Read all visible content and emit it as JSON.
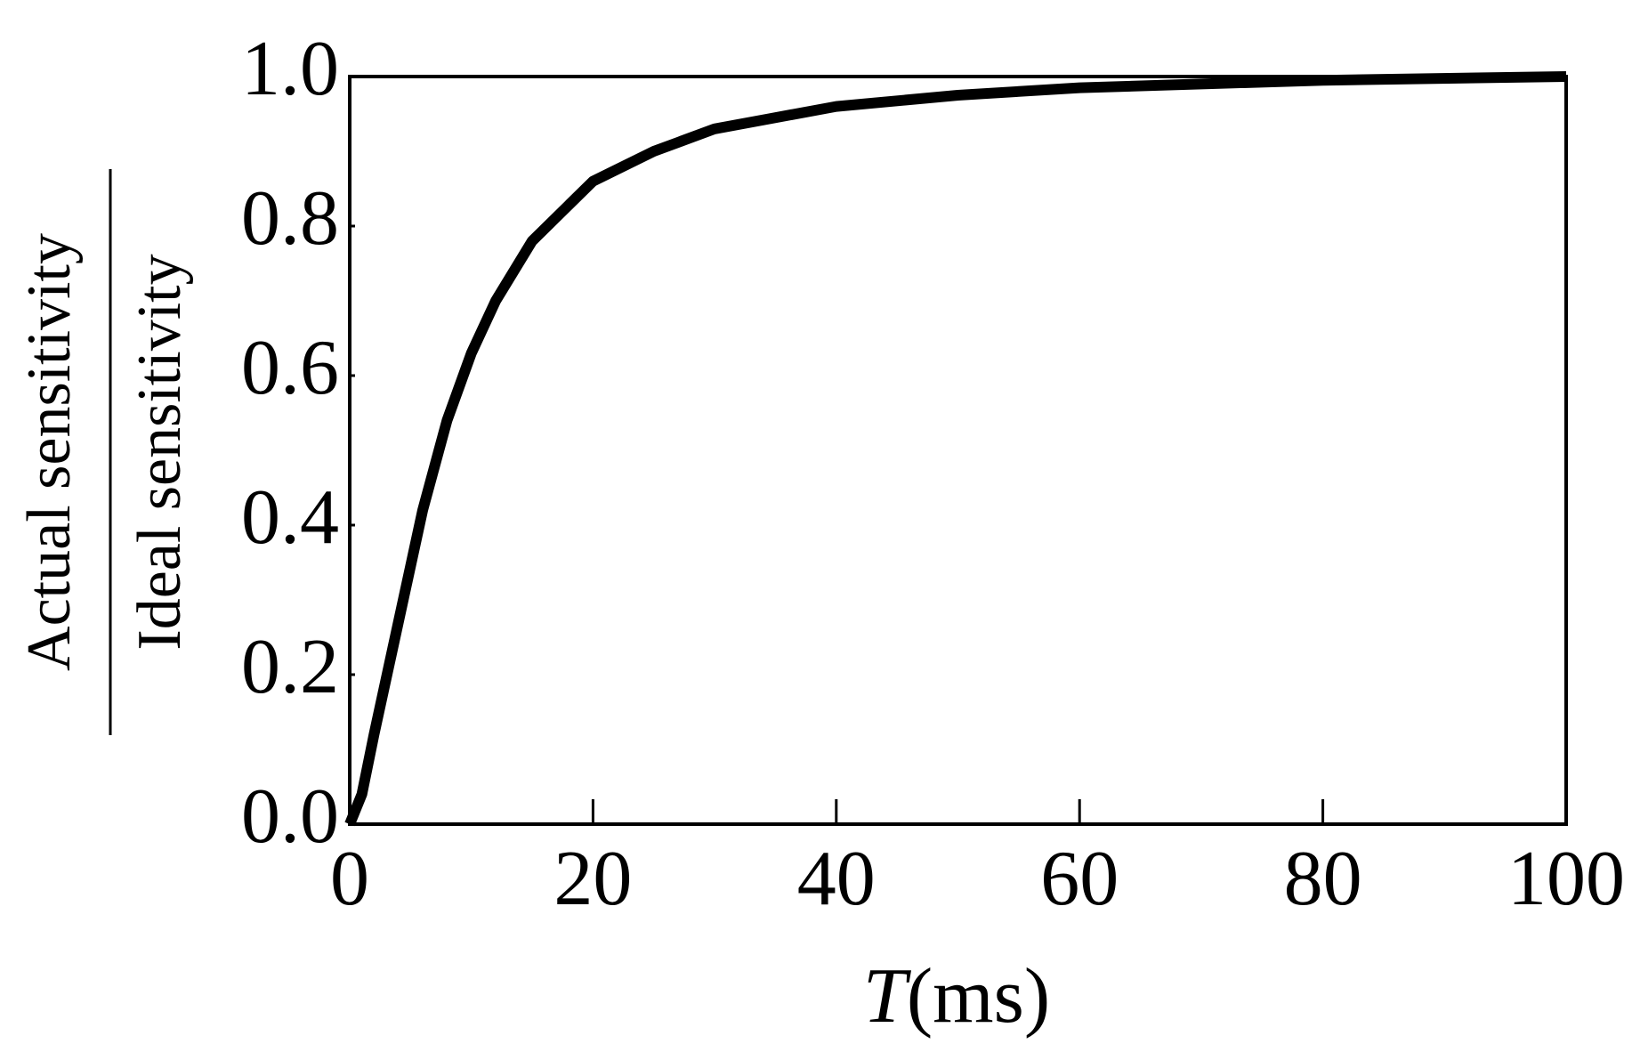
{
  "chart_data": {
    "type": "line",
    "ylabel_numerator": "Actual sensitivity",
    "ylabel_denominator": "Ideal sensitivity",
    "xlabel_var": "T",
    "xlabel_unit": "(ms)",
    "x": [
      0,
      1,
      2,
      4,
      6,
      8,
      10,
      12,
      15,
      20,
      25,
      30,
      40,
      50,
      60,
      70,
      80,
      100
    ],
    "series": [
      {
        "color": "#000000",
        "values": [
          0,
          0.04,
          0.12,
          0.27,
          0.42,
          0.54,
          0.63,
          0.7,
          0.78,
          0.86,
          0.9,
          0.93,
          0.96,
          0.975,
          0.985,
          0.99,
          0.995,
          1.0
        ]
      }
    ],
    "xlim": [
      0,
      100
    ],
    "xticks": [
      0,
      20,
      40,
      60,
      80,
      100
    ],
    "ylim": [
      0,
      1
    ],
    "yticks": [
      {
        "value": 0,
        "label": "0.0"
      },
      0.2,
      0.4,
      0.6,
      0.8,
      {
        "value": 1,
        "label": "1.0"
      }
    ],
    "grid": false
  }
}
